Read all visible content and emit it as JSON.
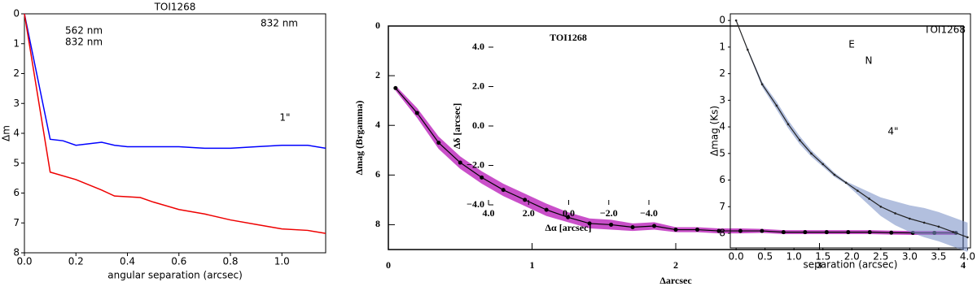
{
  "chart_data": [
    {
      "type": "line",
      "title": "TOI1268",
      "xlabel": "angular separation (arcsec)",
      "ylabel": "Δm",
      "xlim": [
        0,
        1.17
      ],
      "ylim": [
        0,
        8
      ],
      "y_inverted": true,
      "xticks": [
        {
          "value": 0,
          "label": "0.0"
        },
        {
          "value": 0.2,
          "label": "0.2"
        },
        {
          "value": 0.4,
          "label": "0.4"
        },
        {
          "value": 0.6,
          "label": "0.6"
        },
        {
          "value": 0.8,
          "label": "0.8"
        },
        {
          "value": 1.0,
          "label": "1.0"
        }
      ],
      "yticks": [
        0,
        1,
        2,
        3,
        4,
        5,
        6,
        7,
        8
      ],
      "series": [
        {
          "name": "562 nm",
          "color": "#0000ff",
          "x": [
            0,
            0.1,
            0.15,
            0.2,
            0.25,
            0.3,
            0.35,
            0.4,
            0.5,
            0.6,
            0.7,
            0.8,
            0.9,
            1.0,
            1.1,
            1.17
          ],
          "values": [
            0,
            4.2,
            4.25,
            4.4,
            4.35,
            4.3,
            4.4,
            4.45,
            4.45,
            4.45,
            4.5,
            4.5,
            4.45,
            4.4,
            4.4,
            4.5
          ]
        },
        {
          "name": "832 nm",
          "color": "#ee0000",
          "x": [
            0,
            0.1,
            0.2,
            0.3,
            0.35,
            0.45,
            0.5,
            0.6,
            0.7,
            0.8,
            0.9,
            1.0,
            1.1,
            1.17
          ],
          "values": [
            0,
            5.3,
            5.55,
            5.9,
            6.1,
            6.15,
            6.3,
            6.55,
            6.7,
            6.9,
            7.05,
            7.2,
            7.25,
            7.35
          ]
        }
      ],
      "inset": {
        "title": "832 nm",
        "scale_label": "1\""
      }
    },
    {
      "type": "line",
      "xlabel": "Δarcsec",
      "ylabel": "Δmag (Brgamma)",
      "xlim": [
        0,
        4
      ],
      "ylim": [
        0,
        9
      ],
      "y_inverted": true,
      "xticks": [
        0,
        1,
        2,
        3,
        4
      ],
      "yticks": [
        0,
        2,
        4,
        6,
        8
      ],
      "series": [
        {
          "color": "#000000",
          "band_color": "#c030c0",
          "markers": true,
          "x": [
            0.05,
            0.2,
            0.35,
            0.5,
            0.65,
            0.8,
            0.95,
            1.1,
            1.25,
            1.4,
            1.55,
            1.7,
            1.85,
            2.0,
            2.15,
            2.3,
            2.45,
            2.6,
            2.75,
            2.9,
            3.05,
            3.2,
            3.35,
            3.5,
            3.65,
            3.8,
            3.95
          ],
          "values": [
            2.5,
            3.5,
            4.7,
            5.5,
            6.1,
            6.6,
            7.0,
            7.4,
            7.7,
            7.95,
            8.0,
            8.1,
            8.05,
            8.2,
            8.2,
            8.25,
            8.25,
            8.25,
            8.3,
            8.3,
            8.3,
            8.3,
            8.3,
            8.32,
            8.33,
            8.33,
            8.33
          ],
          "errors": [
            0.1,
            0.2,
            0.25,
            0.25,
            0.25,
            0.25,
            0.25,
            0.25,
            0.2,
            0.2,
            0.2,
            0.15,
            0.15,
            0.1,
            0.1,
            0.1,
            0.1,
            0.08,
            0.08,
            0.08,
            0.08,
            0.08,
            0.08,
            0.08,
            0.08,
            0.08,
            0.08
          ]
        }
      ],
      "inset": {
        "title": "TOI1268",
        "xlabel": "Δα [arcsec]",
        "ylabel": "Δδ [arcsec]",
        "xlim": [
          4,
          -4
        ],
        "ylim": [
          -4,
          4
        ],
        "xticks": [
          {
            "value": 4,
            "label": "4.0"
          },
          {
            "value": 2,
            "label": "2.0"
          },
          {
            "value": 0,
            "label": "0.0"
          },
          {
            "value": -2,
            "label": "−2.0"
          },
          {
            "value": -4,
            "label": "−4.0"
          }
        ],
        "yticks": [
          {
            "value": 4,
            "label": "4.0"
          },
          {
            "value": 2,
            "label": "2.0"
          },
          {
            "value": 0,
            "label": "0.0"
          },
          {
            "value": -2,
            "label": "−2.0"
          },
          {
            "value": -4,
            "label": "−4.0"
          }
        ]
      }
    },
    {
      "type": "line",
      "xlabel": "separation (arcsec)",
      "ylabel": "Δmag (Ks)",
      "xlim": [
        -0.1,
        4.05
      ],
      "ylim": [
        -0.25,
        8.55
      ],
      "y_inverted": true,
      "xticks": [
        {
          "value": 0,
          "label": "0.0"
        },
        {
          "value": 0.5,
          "label": "0.5"
        },
        {
          "value": 1,
          "label": "1.0"
        },
        {
          "value": 1.5,
          "label": "1.5"
        },
        {
          "value": 2,
          "label": "2.0"
        },
        {
          "value": 2.5,
          "label": "2.5"
        },
        {
          "value": 3,
          "label": "3.0"
        },
        {
          "value": 3.5,
          "label": "3.5"
        },
        {
          "value": 4,
          "label": "4.0"
        }
      ],
      "yticks": [
        0,
        1,
        2,
        3,
        4,
        5,
        6,
        7,
        8
      ],
      "series": [
        {
          "color": "#222222",
          "band_color": "#7f95c8",
          "markers": true,
          "x": [
            0,
            0.2,
            0.45,
            0.7,
            0.9,
            1.1,
            1.3,
            1.5,
            1.7,
            1.9,
            2.1,
            2.3,
            2.5,
            2.75,
            3.0,
            3.25,
            3.5,
            3.75,
            4.0
          ],
          "values": [
            0,
            1.1,
            2.4,
            3.2,
            3.9,
            4.5,
            5.0,
            5.4,
            5.8,
            6.1,
            6.4,
            6.7,
            7.0,
            7.25,
            7.45,
            7.6,
            7.75,
            7.95,
            8.15
          ],
          "errors": [
            0,
            0.05,
            0.1,
            0.15,
            0.15,
            0.15,
            0.12,
            0.1,
            0.08,
            0.05,
            0.15,
            0.25,
            0.35,
            0.45,
            0.5,
            0.55,
            0.55,
            0.55,
            0.55
          ]
        }
      ],
      "inset": {
        "title": "TOI1268",
        "labels": [
          "E",
          "N"
        ],
        "scale_label": "4\""
      }
    }
  ]
}
